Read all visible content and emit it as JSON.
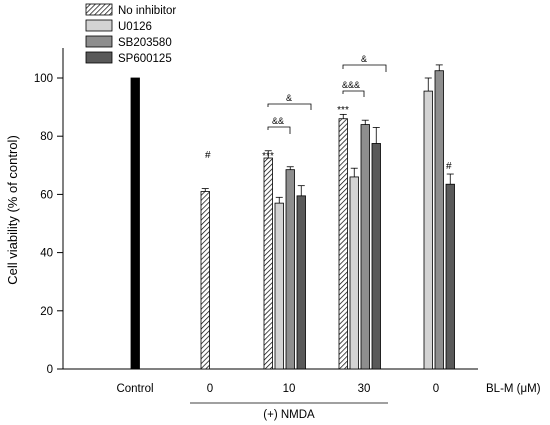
{
  "chart_data": {
    "type": "bar",
    "ylabel": "Cell viability (% of control)",
    "ylim": [
      0,
      110
    ],
    "yticks": [
      0,
      20,
      40,
      60,
      80,
      100
    ],
    "x_unit_label": "BL-M (μM)",
    "group_note": "(+) NMDA",
    "categories": [
      "Control",
      "0",
      "10",
      "30",
      "0"
    ],
    "series": [
      {
        "name": "No inhibitor",
        "fill": "#ffffff",
        "pattern": "hatch",
        "values": [
          null,
          61,
          72.5,
          86,
          null
        ],
        "errors": [
          null,
          1,
          2.5,
          1.5,
          null
        ]
      },
      {
        "name": "U0126",
        "fill": "#d3d3d3",
        "values": [
          null,
          null,
          57,
          66,
          95.5
        ],
        "errors": [
          null,
          null,
          2,
          3,
          4.5
        ]
      },
      {
        "name": "SB203580",
        "fill": "#8e8e8e",
        "values": [
          null,
          null,
          68.5,
          84,
          102.5
        ],
        "errors": [
          null,
          null,
          1,
          1.5,
          2
        ]
      },
      {
        "name": "SP600125",
        "fill": "#595959",
        "values": [
          null,
          null,
          59.5,
          77.5,
          63.5
        ],
        "errors": [
          null,
          null,
          3.5,
          5.5,
          3.5
        ]
      }
    ],
    "control_bar": {
      "value": 100,
      "fill": "#000000"
    },
    "annotations": {
      "hash": "#",
      "stars": "***",
      "amp1": "&",
      "amp2": "&&",
      "amp3": "&&&"
    },
    "legend_position": "top-left",
    "grid": false
  }
}
